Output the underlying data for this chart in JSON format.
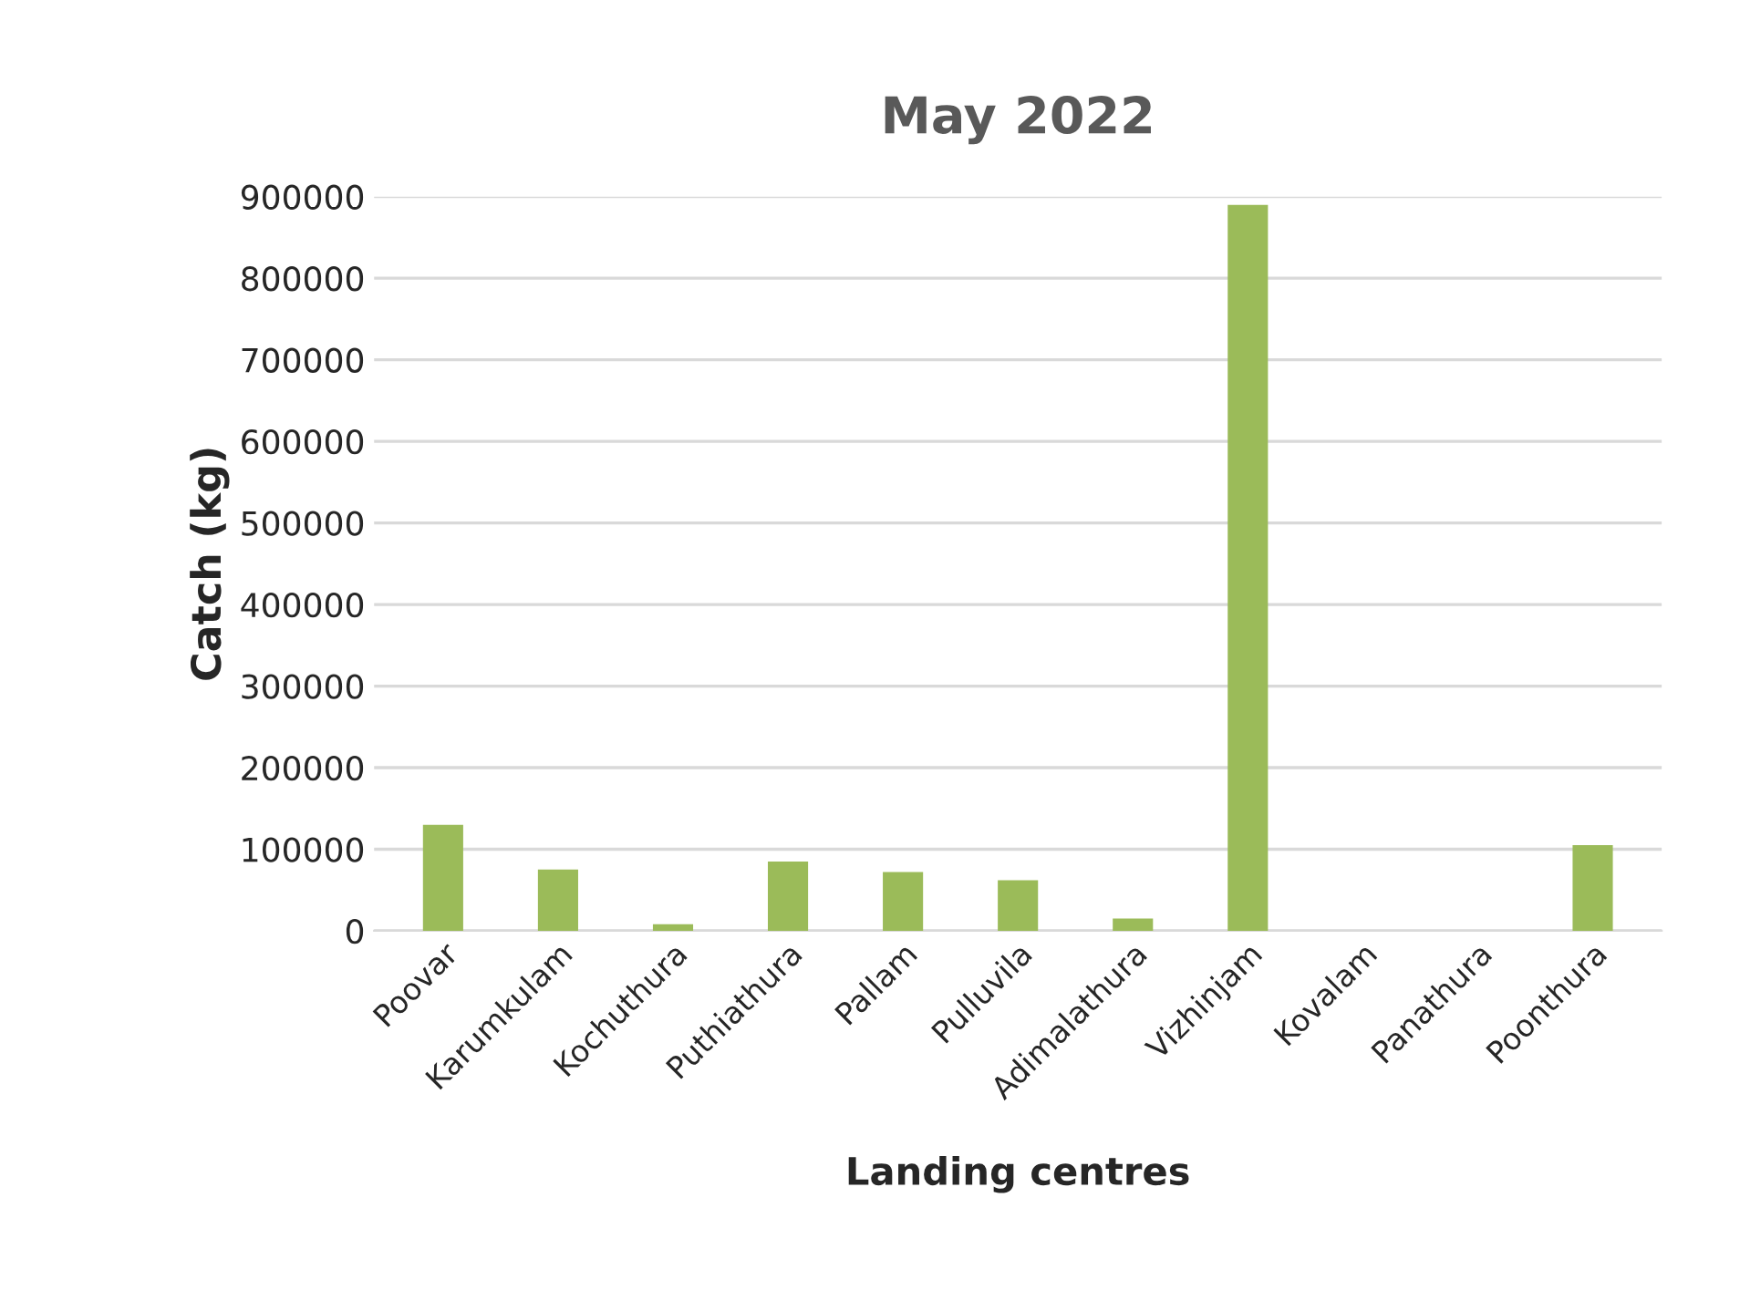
{
  "chart_data": {
    "type": "bar",
    "title": "May 2022",
    "xlabel": "Landing centres",
    "ylabel": "Catch (kg)",
    "categories": [
      "Poovar",
      "Karumkulam",
      "Kochuthura",
      "Puthiathura",
      "Pallam",
      "Pulluvila",
      "Adimalathura",
      "Vizhinjam",
      "Kovalam",
      "Panathura",
      "Poonthura"
    ],
    "values": [
      130000,
      75000,
      8000,
      85000,
      72000,
      62000,
      15000,
      890000,
      0,
      0,
      105000
    ],
    "color": "#9bbb59",
    "ylim": [
      0,
      900000
    ],
    "yticks": [
      0,
      100000,
      200000,
      300000,
      400000,
      500000,
      600000,
      700000,
      800000,
      900000
    ],
    "grid": "y",
    "legend": false
  }
}
